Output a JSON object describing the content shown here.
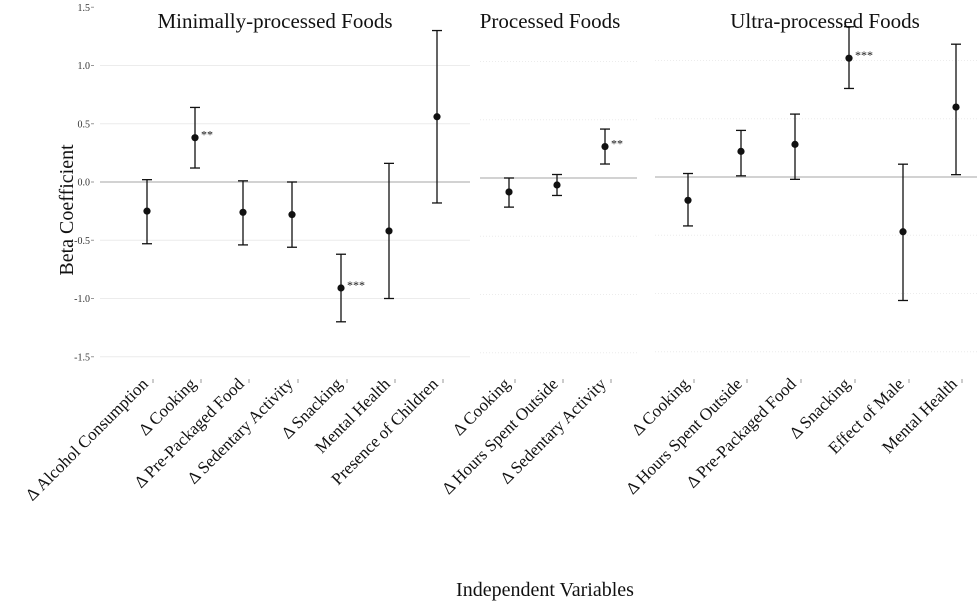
{
  "x_axis_title": "Independent Variables",
  "y_axis_title": "Beta Coefficient",
  "y_ticks": [
    "1.5",
    "1.0",
    "0.5",
    "0.0",
    "-0.5",
    "-1.0",
    "-1.5"
  ],
  "chart_data": [
    {
      "type": "scatter",
      "title": "Minimally-processed Foods",
      "xlabel": "Independent Variables",
      "ylabel": "Beta Coefficient",
      "ylim": [
        -1.5,
        1.5
      ],
      "categories": [
        "Δ Alcohol Consumption",
        "Δ Cooking",
        "Δ Pre-Packaged Food",
        "Δ Sedentary Activity",
        "Δ Snacking",
        "Mental Health",
        "Presence of Children"
      ],
      "values": [
        -0.25,
        0.38,
        -0.26,
        -0.28,
        -0.91,
        -0.42,
        0.56
      ],
      "ci_low": [
        -0.53,
        0.12,
        -0.54,
        -0.56,
        -1.2,
        -1.0,
        -0.18
      ],
      "ci_high": [
        0.02,
        0.64,
        0.01,
        0.0,
        -0.62,
        0.16,
        1.3
      ],
      "significance": [
        "",
        "**",
        "",
        "",
        "***",
        "",
        ""
      ]
    },
    {
      "type": "scatter",
      "title": "Processed Foods",
      "xlabel": "Independent Variables",
      "ylabel": "Beta Coefficient",
      "ylim": [
        -1.5,
        1.5
      ],
      "categories": [
        "Δ Cooking",
        "Δ Hours Spent Outside",
        "Δ Sedentary Activity"
      ],
      "values": [
        -0.12,
        -0.06,
        0.27
      ],
      "ci_low": [
        -0.25,
        -0.15,
        0.12
      ],
      "ci_high": [
        0.0,
        0.03,
        0.42
      ],
      "significance": [
        "",
        "",
        "**"
      ]
    },
    {
      "type": "scatter",
      "title": "Ultra-processed Foods",
      "xlabel": "Independent Variables",
      "ylabel": "Beta Coefficient",
      "ylim": [
        -1.5,
        1.5
      ],
      "categories": [
        "Δ Cooking",
        "Δ Hours Spent Outside",
        "Δ Pre-Packaged Food",
        "Δ Snacking",
        "Effect of Male",
        "Mental Health"
      ],
      "values": [
        -0.2,
        0.22,
        0.28,
        1.02,
        -0.47,
        0.6
      ],
      "ci_low": [
        -0.42,
        0.01,
        -0.02,
        0.76,
        -1.06,
        0.02
      ],
      "ci_high": [
        0.03,
        0.4,
        0.54,
        1.29,
        0.11,
        1.14
      ],
      "significance": [
        "",
        "",
        "",
        "***",
        "",
        ""
      ]
    }
  ]
}
